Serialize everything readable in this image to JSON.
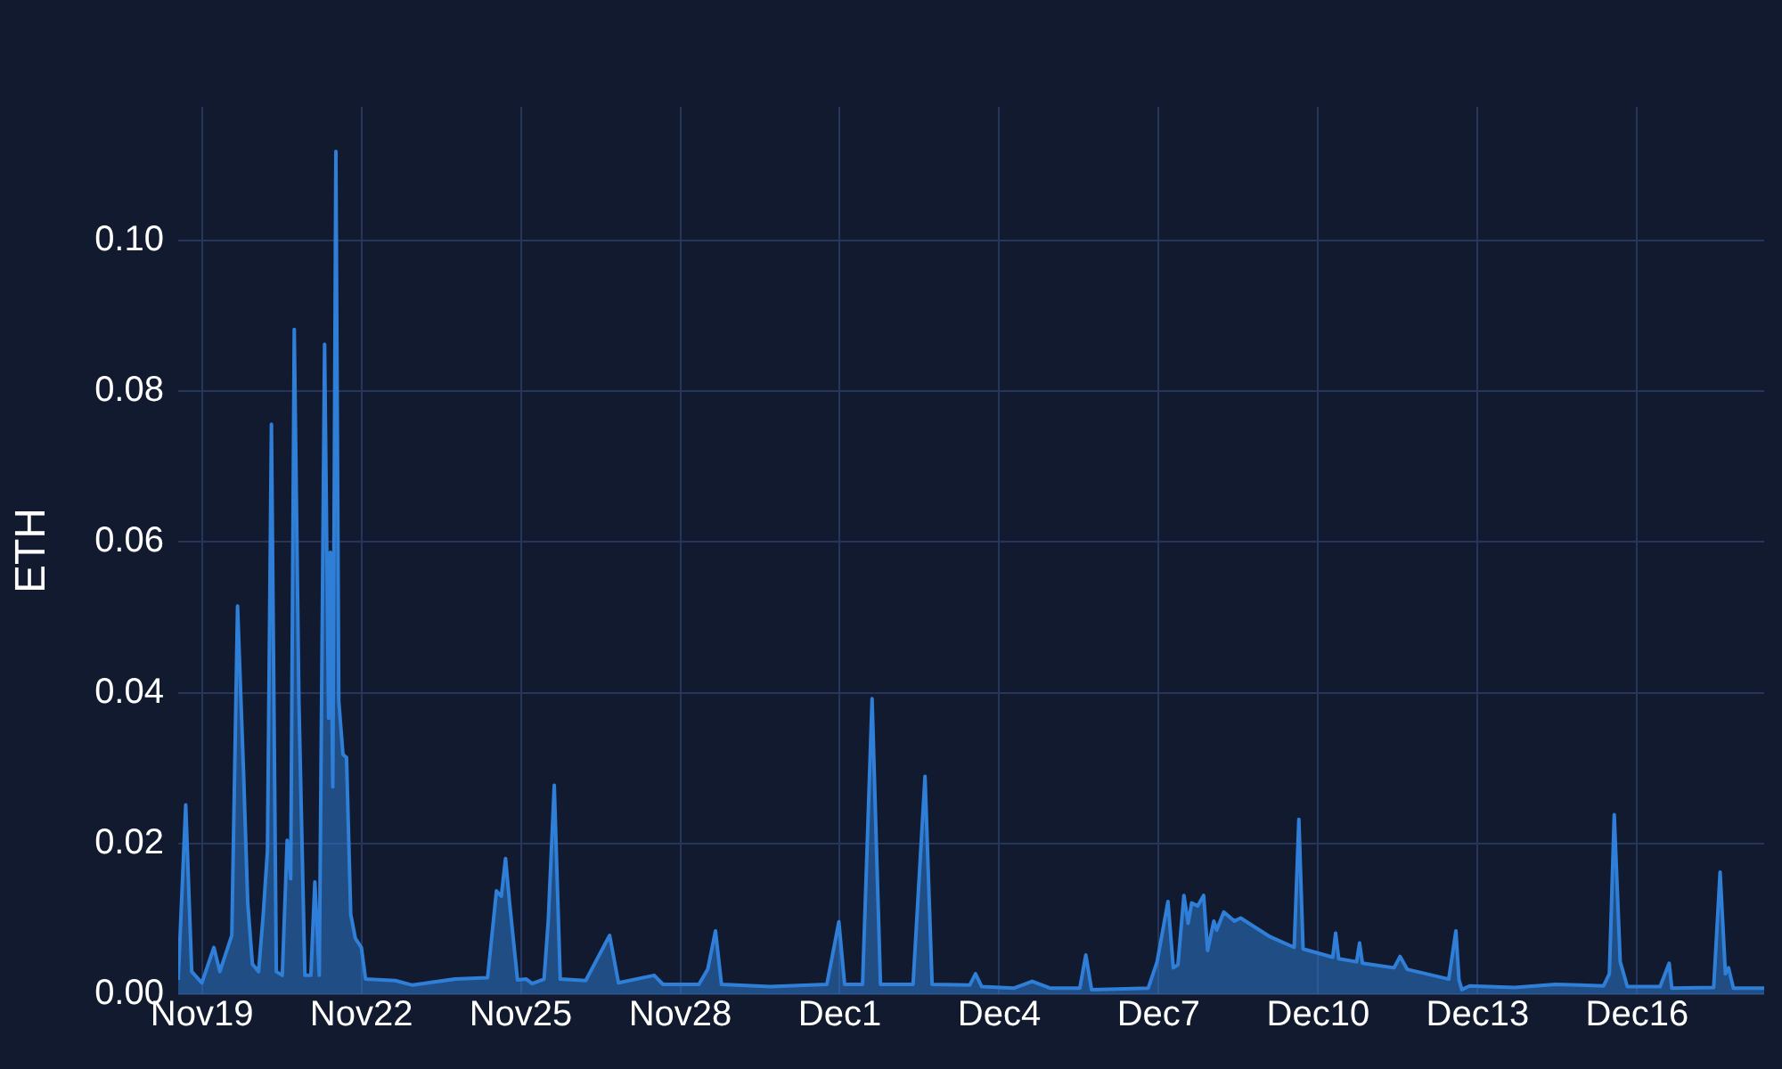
{
  "chart_data": {
    "type": "area",
    "ylabel": "ETH",
    "grid": true,
    "legend": false,
    "xlim": [
      "--11-18T13:18",
      "--12-18T09:24"
    ],
    "ylim": [
      0,
      0.1177
    ],
    "yticks": [
      {
        "value": 0,
        "label": "0.00"
      },
      {
        "value": 0.02,
        "label": "0.02"
      },
      {
        "value": 0.04,
        "label": "0.04"
      },
      {
        "value": 0.06,
        "label": "0.06"
      },
      {
        "value": 0.08,
        "label": "0.08"
      },
      {
        "value": 0.1,
        "label": "0.10"
      }
    ],
    "xticks": [
      {
        "value": "--11-19",
        "label": "Nov19"
      },
      {
        "value": "--11-22",
        "label": "Nov22"
      },
      {
        "value": "--11-25",
        "label": "Nov25"
      },
      {
        "value": "--11-28",
        "label": "Nov28"
      },
      {
        "value": "--12-01",
        "label": "Dec1"
      },
      {
        "value": "--12-04",
        "label": "Dec4"
      },
      {
        "value": "--12-07",
        "label": "Dec7"
      },
      {
        "value": "--12-10",
        "label": "Dec10"
      },
      {
        "value": "--12-13",
        "label": "Dec13"
      },
      {
        "value": "--12-16",
        "label": "Dec16"
      }
    ],
    "x": [
      "--11-18T13:18",
      "--11-18T16:42",
      "--11-18T19:24",
      "--11-19T00:00",
      "--11-19T05:24",
      "--11-19T08:06",
      "--11-19T13:30",
      "--11-19T16:06",
      "--11-19T18:48",
      "--11-19T20:42",
      "--11-19T22:48",
      "--11-20T01:36",
      "--11-20T03:42",
      "--11-20T05:36",
      "--11-20T07:24",
      "--11-20T09:36",
      "--11-20T12:18",
      "--11-20T14:30",
      "--11-20T16:06",
      "--11-20T17:42",
      "--11-20T19:48",
      "--11-20T22:30",
      "--11-21T01:12",
      "--11-21T03:00",
      "--11-21T05:00",
      "--11-21T07:24",
      "--11-21T09:12",
      "--11-21T10:00",
      "--11-21T11:06",
      "--11-21T12:30",
      "--11-21T13:48",
      "--11-21T15:42",
      "--11-21T17:18",
      "--11-21T19:12",
      "--11-21T21:18",
      "--11-22T00:00",
      "--11-22T01:54",
      "--11-22T15:18",
      "--11-22T23:06",
      "--11-23T18:12",
      "--11-24T09:00",
      "--11-24T13:00",
      "--11-24T15:12",
      "--11-24T17:06",
      "--11-24T18:54",
      "--11-24T22:30",
      "--11-25T02:30",
      "--11-25T05:06",
      "--11-25T10:30",
      "--11-25T12:24",
      "--11-25T15:06",
      "--11-25T17:48",
      "--11-26T05:18",
      "--11-26T16:06",
      "--11-26T20:06",
      "--11-27T12:12",
      "--11-27T16:12",
      "--11-28T08:24",
      "--11-28T12:24",
      "--11-28T15:54",
      "--11-28T18:36",
      "--11-29T16:36",
      "--11-30T18:12",
      "--11-30T23:36",
      "--12-01T02:12",
      "--12-01T10:18",
      "--12-01T14:36",
      "--12-01T18:24",
      "--12-02T09:06",
      "--12-02T14:30",
      "--12-02T17:42",
      "--12-03T10:42",
      "--12-03T13:18",
      "--12-03T16:06",
      "--12-04T06:48",
      "--12-04T14:54",
      "--12-04T22:54",
      "--12-05T12:24",
      "--12-05T15:06",
      "--12-05T17:42",
      "--12-06T19:18",
      "--12-06T23:18",
      "--12-07T04:12",
      "--12-07T06:36",
      "--12-07T08:42",
      "--12-07T11:24",
      "--12-07T13:18",
      "--12-07T14:54",
      "--12-07T17:36",
      "--12-07T20:18",
      "--12-07T22:06",
      "--12-08T00:54",
      "--12-08T02:12",
      "--12-08T05:24",
      "--12-08T10:12",
      "--12-08T13:00",
      "--12-09T02:24",
      "--12-09T13:12",
      "--12-09T15:18",
      "--12-09T17:12",
      "--12-10T06:36",
      "--12-10T07:54",
      "--12-10T09:18",
      "--12-10T17:24",
      "--12-10T18:42",
      "--12-10T20:00",
      "--12-11T10:18",
      "--12-11T13:00",
      "--12-11T16:12",
      "--12-12T11:00",
      "--12-12T14:12",
      "--12-12T15:36",
      "--12-12T16:54",
      "--12-12T20:24",
      "--12-13T16:36",
      "--12-14T11:18",
      "--12-15T08:54",
      "--12-15T11:30",
      "--12-15T13:42",
      "--12-15T16:24",
      "--12-15T19:36",
      "--12-16T10:24",
      "--12-16T14:30",
      "--12-16T15:42",
      "--12-17T10:36",
      "--12-17T13:30",
      "--12-17T15:54",
      "--12-17T17:18",
      "--12-17T19:30",
      "--12-18T09:24"
    ],
    "series": [
      {
        "color": "#2f7fd8",
        "values": [
          0.0019,
          0.0251,
          0.003,
          0.0015,
          0.0062,
          0.003,
          0.0078,
          0.0515,
          0.0295,
          0.0121,
          0.004,
          0.003,
          0.0106,
          0.019,
          0.0756,
          0.003,
          0.0025,
          0.0204,
          0.0153,
          0.0882,
          0.039,
          0.0025,
          0.0025,
          0.0149,
          0.0025,
          0.0862,
          0.0366,
          0.0586,
          0.0275,
          0.1118,
          0.0389,
          0.0318,
          0.0314,
          0.0106,
          0.0074,
          0.0062,
          0.002,
          0.0018,
          0.0012,
          0.002,
          0.0022,
          0.0137,
          0.013,
          0.018,
          0.0122,
          0.0019,
          0.002,
          0.0014,
          0.002,
          0.0098,
          0.0277,
          0.002,
          0.0018,
          0.0078,
          0.0015,
          0.0025,
          0.0013,
          0.0013,
          0.0033,
          0.0084,
          0.0013,
          0.001,
          0.0013,
          0.0096,
          0.0013,
          0.0013,
          0.0392,
          0.0013,
          0.0013,
          0.0289,
          0.0013,
          0.0012,
          0.0027,
          0.001,
          0.0008,
          0.0017,
          0.0008,
          0.0008,
          0.0052,
          0.0006,
          0.0008,
          0.0043,
          0.0123,
          0.0035,
          0.0039,
          0.0131,
          0.0094,
          0.0121,
          0.0117,
          0.0131,
          0.0058,
          0.0097,
          0.0085,
          0.0109,
          0.0097,
          0.0101,
          0.0076,
          0.0062,
          0.0232,
          0.006,
          0.0049,
          0.0081,
          0.0047,
          0.0043,
          0.0068,
          0.0041,
          0.0035,
          0.005,
          0.0033,
          0.002,
          0.0084,
          0.0019,
          0.0006,
          0.0011,
          0.0009,
          0.0013,
          0.0011,
          0.0027,
          0.0238,
          0.0043,
          0.001,
          0.001,
          0.0041,
          0.0008,
          0.0009,
          0.0162,
          0.0027,
          0.0035,
          0.0008,
          0.0008
        ]
      }
    ]
  }
}
